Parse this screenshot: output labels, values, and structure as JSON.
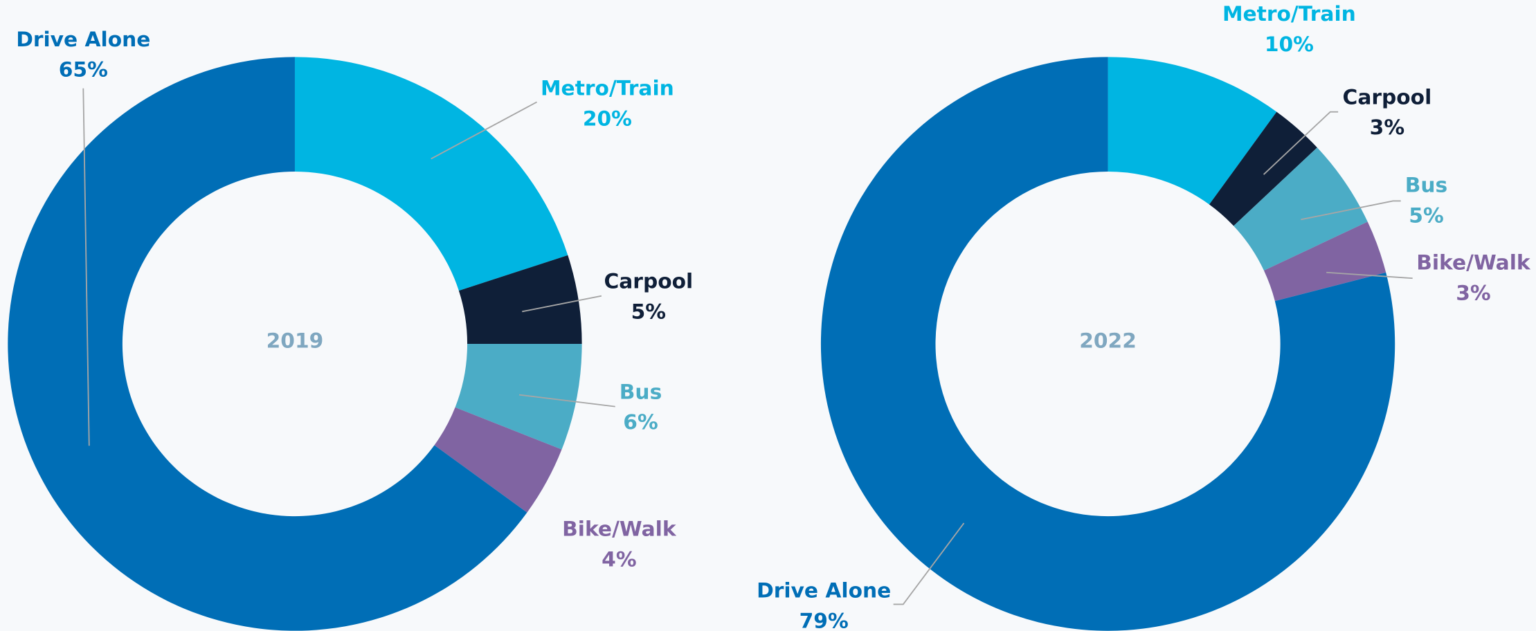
{
  "chart_data": [
    {
      "type": "pie",
      "title": "2019",
      "categories": [
        "Metro/Train",
        "Carpool",
        "Bus",
        "Bike/Walk",
        "Drive Alone"
      ],
      "values": [
        20,
        5,
        6,
        4,
        65
      ],
      "value_labels": [
        "20%",
        "5%",
        "6%",
        "4%",
        "65%"
      ],
      "colors": [
        "#00b5e2",
        "#0f1f38",
        "#4bacc6",
        "#8064a2",
        "#006eb6"
      ]
    },
    {
      "type": "pie",
      "title": "2022",
      "categories": [
        "Metro/Train",
        "Carpool",
        "Bus",
        "Bike/Walk",
        "Drive Alone"
      ],
      "values": [
        10,
        3,
        5,
        3,
        79
      ],
      "value_labels": [
        "10%",
        "3%",
        "5%",
        "3%",
        "79%"
      ],
      "colors": [
        "#00b5e2",
        "#0f1f38",
        "#4bacc6",
        "#8064a2",
        "#006eb6"
      ]
    }
  ]
}
